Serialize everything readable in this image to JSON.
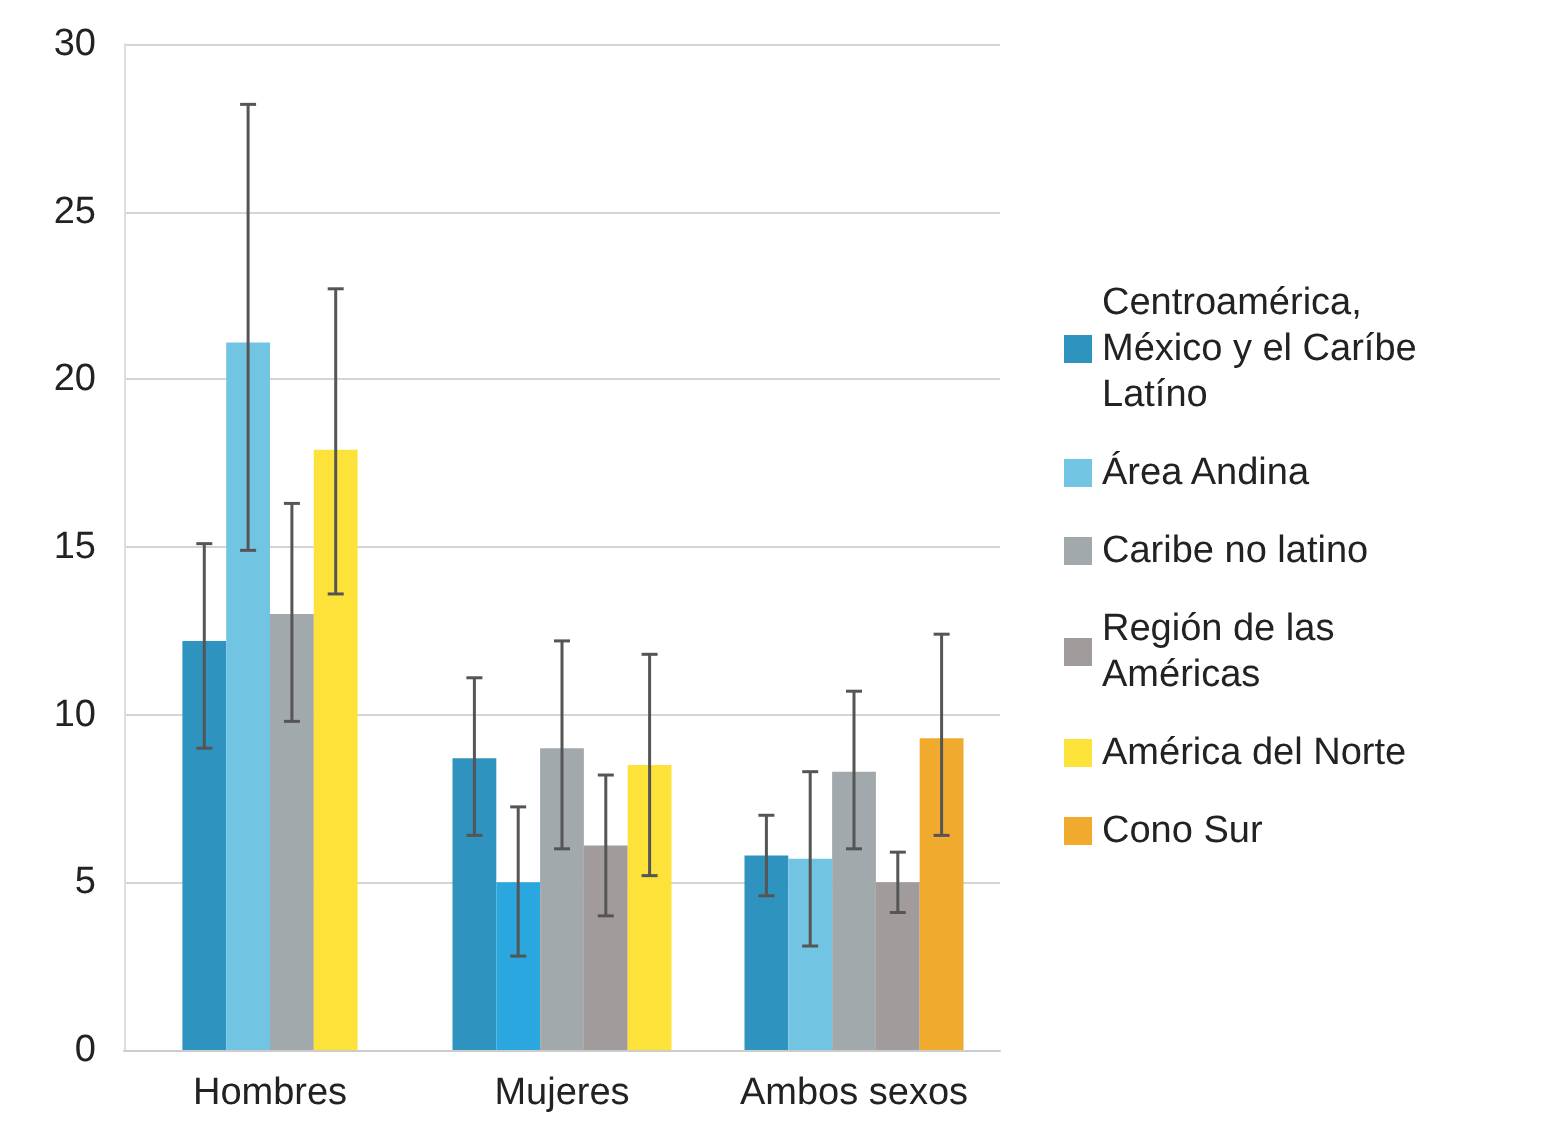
{
  "chart_data": {
    "type": "bar",
    "categories": [
      "Hombres",
      "Mujeres",
      "Ambos sexos"
    ],
    "series": [
      {
        "name": "Centroamérica, México y el Caríbe Latíno",
        "color": "#2f93bf",
        "values": [
          12.2,
          8.7,
          5.8
        ],
        "errors": [
          [
            9.0,
            15.1
          ],
          [
            6.4,
            11.1
          ],
          [
            4.6,
            7.0
          ]
        ]
      },
      {
        "name": "Área Andina",
        "color": "#71c5e2",
        "colors": [
          "#71c5e2",
          "#2aa7df",
          "#71c5e2"
        ],
        "values": [
          21.1,
          5.0,
          5.7
        ],
        "errors": [
          [
            14.9,
            28.2
          ],
          [
            2.8,
            7.25
          ],
          [
            3.1,
            8.3
          ]
        ]
      },
      {
        "name": "Caribe no latino",
        "color": "#a2a9ad",
        "values": [
          13.0,
          9.0,
          8.3
        ],
        "errors": [
          [
            9.8,
            16.3
          ],
          [
            6.0,
            12.2
          ],
          [
            6.0,
            10.7
          ]
        ]
      },
      {
        "name": "Región de las Américas",
        "color": "#a29b9b",
        "values": [
          null,
          6.1,
          5.0
        ],
        "errors": [
          null,
          [
            4.0,
            8.2
          ],
          [
            4.1,
            5.9
          ]
        ]
      },
      {
        "name": "América del Norte",
        "color": "#fde23a",
        "values": [
          17.9,
          8.5,
          null
        ],
        "errors": [
          [
            13.6,
            22.7
          ],
          [
            5.2,
            11.8
          ],
          null
        ]
      },
      {
        "name": "Cono Sur",
        "color": "#f0aa2e",
        "values": [
          null,
          null,
          9.3
        ],
        "errors": [
          null,
          null,
          [
            6.4,
            12.4
          ]
        ]
      }
    ],
    "ylim": [
      0,
      30
    ],
    "yticks": [
      0,
      5,
      10,
      15,
      20,
      25,
      30
    ],
    "grid": "y",
    "legend": "right"
  }
}
